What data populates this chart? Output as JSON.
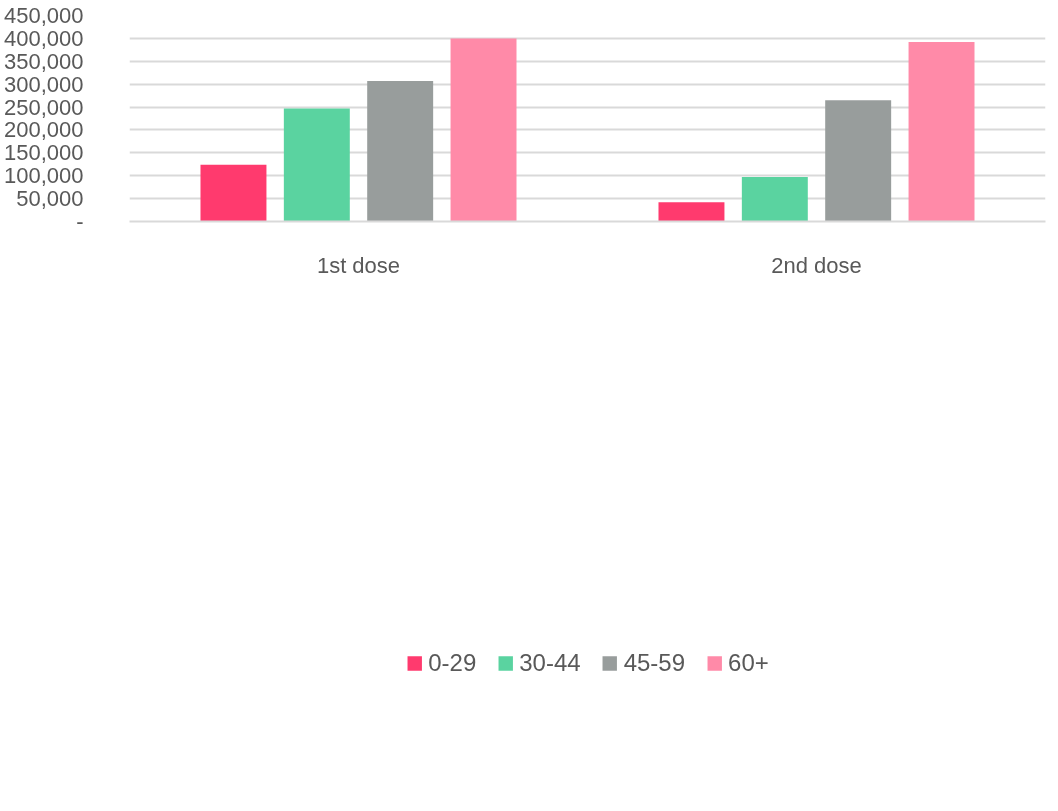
{
  "chart_data": {
    "type": "bar",
    "categories": [
      "1st dose",
      "2nd dose"
    ],
    "series": [
      {
        "name": "0-29",
        "color": "#ff3a6e",
        "values": [
          124000,
          42000
        ]
      },
      {
        "name": "30-44",
        "color": "#5ad3a0",
        "values": [
          247000,
          97000
        ]
      },
      {
        "name": "45-59",
        "color": "#989d9c",
        "values": [
          307000,
          265000
        ]
      },
      {
        "name": "60+",
        "color": "#ff8aa8",
        "values": [
          400000,
          392000
        ]
      }
    ],
    "ylim": [
      0,
      450000
    ],
    "yticks": [
      {
        "value": 0,
        "label": "-"
      },
      {
        "value": 50000,
        "label": "50,000"
      },
      {
        "value": 100000,
        "label": "100,000"
      },
      {
        "value": 150000,
        "label": "150,000"
      },
      {
        "value": 200000,
        "label": "200,000"
      },
      {
        "value": 250000,
        "label": "250,000"
      },
      {
        "value": 300000,
        "label": "300,000"
      },
      {
        "value": 350000,
        "label": "350,000"
      },
      {
        "value": 400000,
        "label": "400,000"
      },
      {
        "value": 450000,
        "label": "450,000"
      }
    ],
    "grid": "y",
    "legend": "bottom"
  }
}
